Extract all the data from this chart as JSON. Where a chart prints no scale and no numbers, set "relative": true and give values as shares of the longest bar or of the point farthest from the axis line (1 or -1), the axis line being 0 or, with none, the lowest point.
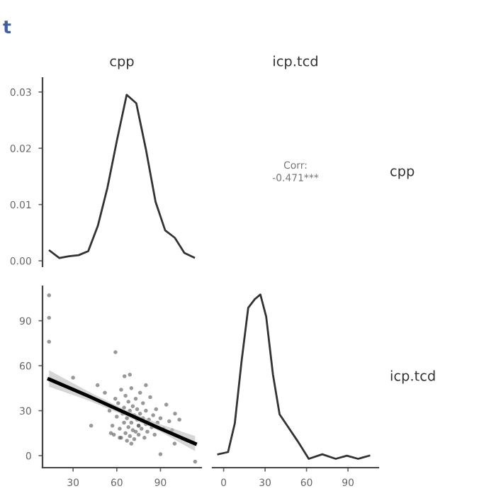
{
  "chart_data": [
    {
      "type": "line",
      "title": "cpp",
      "annotations": [
        "t"
      ],
      "ylim": [
        -0.001,
        0.0325
      ],
      "yticks": [
        {
          "value": 0,
          "label": "0.00"
        },
        {
          "value": 0.01,
          "label": "0.01"
        },
        {
          "value": 0.02,
          "label": "0.02"
        },
        {
          "value": 0.03,
          "label": "0.03"
        }
      ],
      "tick_labels": "y",
      "grid": false,
      "categories": [
        null,
        null,
        null,
        null,
        null,
        null,
        null,
        null,
        null,
        null,
        null,
        null,
        null,
        null,
        null,
        null
      ],
      "series": [
        {
          "color": "#333333",
          "values": [
            0.0018,
            0.0005,
            0.0008,
            0.001,
            0.0017,
            0.0062,
            0.013,
            0.0215,
            0.0295,
            0.028,
            0.0198,
            0.0105,
            0.0054,
            0.0041,
            0.0014,
            0.0006
          ]
        }
      ]
    },
    {
      "type": "other",
      "title": "icp.tcd",
      "y2label": "cpp",
      "annotations": [
        "Corr:",
        "-0.471***"
      ]
    },
    {
      "type": "scatter",
      "xlim": [
        9,
        118
      ],
      "ylim": [
        -8,
        113
      ],
      "xticks": [
        30,
        60,
        90
      ],
      "yticks": [
        0,
        30,
        60,
        90
      ],
      "grid": false,
      "marker": "circle",
      "series": [
        {
          "color": "#555555",
          "x": [
            13.5,
            13.5,
            13.5,
            30,
            59.1,
            65.3,
            69,
            90,
            113.8,
            99.7,
            42.4,
            46.8,
            51.8,
            55,
            57,
            58,
            60,
            61,
            62,
            63,
            63,
            64,
            65,
            65,
            66,
            66,
            67,
            67,
            68,
            68,
            69,
            69,
            70,
            70,
            71,
            71,
            72,
            72,
            73,
            73,
            74,
            74,
            75,
            75,
            76,
            76,
            77,
            78,
            78,
            79,
            80,
            80,
            81,
            82,
            83,
            84,
            85,
            86,
            87,
            88,
            90,
            92,
            94,
            96,
            98,
            100,
            103,
            56,
            59,
            62,
            70,
            75,
            80
          ],
          "values": [
            107,
            92,
            76,
            52,
            69,
            53,
            54,
            1,
            -4,
            8,
            20,
            47,
            42,
            30,
            20,
            14,
            26,
            35,
            18,
            44,
            12,
            28,
            22,
            32,
            15,
            40,
            25,
            10,
            36,
            19,
            30,
            13,
            45,
            22,
            17,
            33,
            27,
            11,
            38,
            16,
            24,
            31,
            20,
            14,
            28,
            42,
            18,
            25,
            35,
            12,
            21,
            30,
            16,
            24,
            39,
            19,
            27,
            14,
            31,
            22,
            25,
            18,
            34,
            23,
            17,
            28,
            24,
            15,
            38,
            12,
            8,
            20,
            47
          ]
        },
        {
          "type": "line",
          "color": "#000000",
          "x": [
            13.5,
            40,
            65,
            90,
            113.8
          ],
          "values": [
            51,
            40,
            29,
            18,
            8
          ],
          "lower": [
            46,
            37,
            27,
            16,
            3
          ],
          "upper": [
            57,
            43,
            31,
            21,
            13
          ],
          "marker": "none"
        }
      ]
    },
    {
      "type": "line",
      "relative": true,
      "y2label": "icp.tcd",
      "xlim": [
        -8,
        112
      ],
      "xticks": [
        0,
        30,
        60,
        90
      ],
      "tick_labels": "x",
      "grid": false,
      "series": [
        {
          "color": "#333333",
          "x": [
            -3.9,
            3.2,
            8.1,
            13,
            17.8,
            22.7,
            26.6,
            30.8,
            35.7,
            40.5,
            47,
            53.5,
            61.6,
            71.4,
            81.1,
            89.2,
            97.3,
            105.4
          ],
          "values": [
            0.077,
            0.09,
            0.256,
            0.615,
            0.923,
            0.974,
            1,
            0.872,
            0.538,
            0.308,
            0.231,
            0.154,
            0.051,
            0.077,
            0.051,
            0.069,
            0.051,
            0.069
          ]
        }
      ]
    }
  ]
}
